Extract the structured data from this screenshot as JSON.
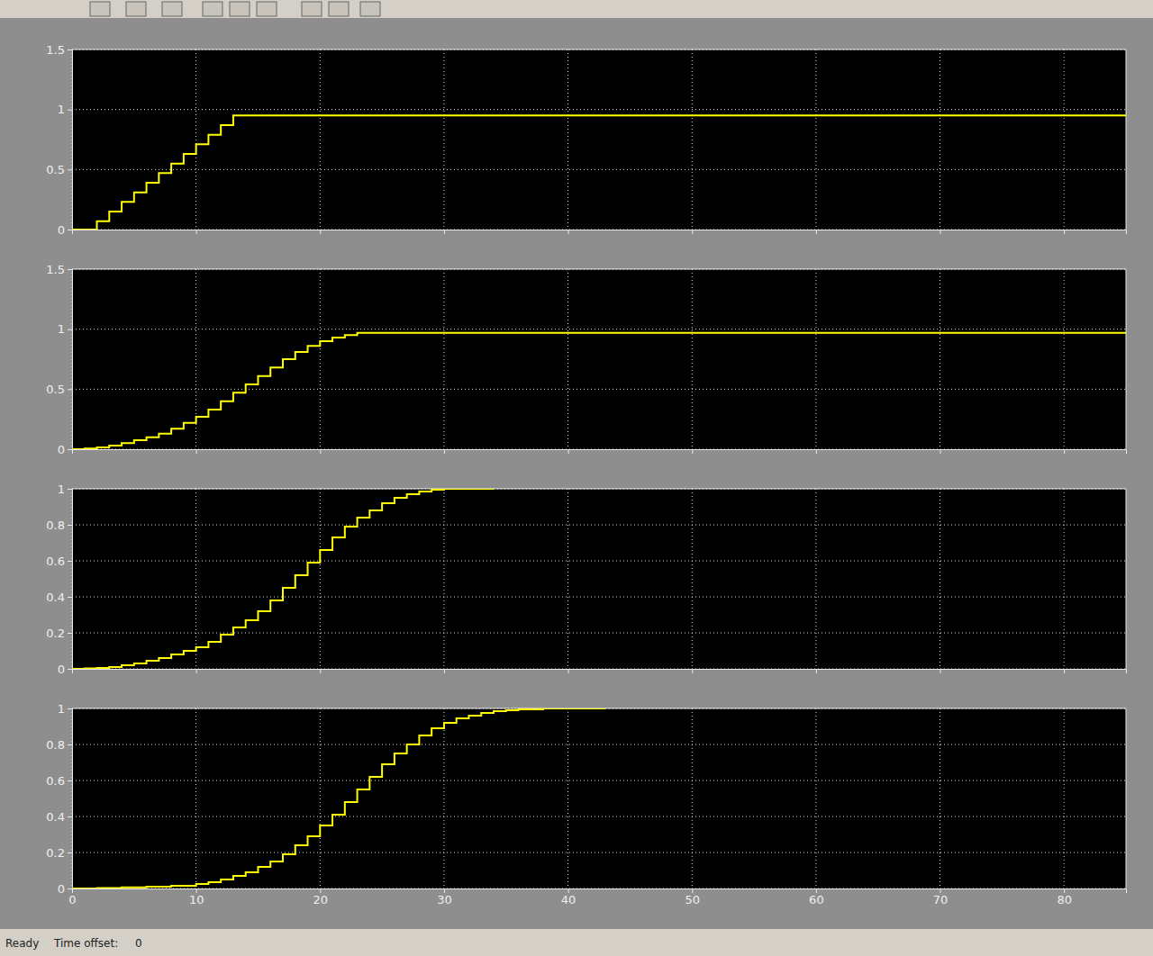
{
  "chart_data": [
    {
      "type": "line",
      "color": "#ffff00",
      "line_style": "step",
      "grid": true,
      "tick_labels": "y",
      "xlim": [
        0,
        85
      ],
      "xticks": [
        0,
        10,
        20,
        30,
        40,
        50,
        60,
        70,
        80
      ],
      "ylim": [
        0,
        1.5
      ],
      "yticks": [
        0,
        0.5,
        1,
        1.5
      ],
      "x": [
        0,
        1,
        2,
        3,
        4,
        5,
        6,
        7,
        8,
        9,
        10,
        11,
        12,
        13,
        85
      ],
      "values": [
        0,
        0,
        0.07,
        0.15,
        0.23,
        0.31,
        0.39,
        0.47,
        0.55,
        0.63,
        0.71,
        0.79,
        0.87,
        0.95,
        0.95
      ]
    },
    {
      "type": "line",
      "color": "#ffff00",
      "line_style": "step",
      "grid": true,
      "tick_labels": "y",
      "xlim": [
        0,
        85
      ],
      "xticks": [
        0,
        10,
        20,
        30,
        40,
        50,
        60,
        70,
        80
      ],
      "ylim": [
        0,
        1.5
      ],
      "yticks": [
        0,
        0.5,
        1,
        1.5
      ],
      "x": [
        0,
        1,
        2,
        3,
        4,
        5,
        6,
        7,
        8,
        9,
        10,
        11,
        12,
        13,
        14,
        15,
        16,
        17,
        18,
        19,
        20,
        21,
        22,
        23,
        85
      ],
      "values": [
        0,
        0.005,
        0.015,
        0.03,
        0.05,
        0.075,
        0.1,
        0.13,
        0.17,
        0.22,
        0.27,
        0.33,
        0.4,
        0.47,
        0.54,
        0.61,
        0.68,
        0.75,
        0.81,
        0.86,
        0.9,
        0.93,
        0.95,
        0.97,
        0.97
      ]
    },
    {
      "type": "line",
      "color": "#ffff00",
      "line_style": "step",
      "grid": true,
      "tick_labels": "y",
      "xlim": [
        0,
        85
      ],
      "xticks": [
        0,
        10,
        20,
        30,
        40,
        50,
        60,
        70,
        80
      ],
      "ylim": [
        0,
        1
      ],
      "yticks": [
        0,
        0.2,
        0.4,
        0.6,
        0.8,
        1
      ],
      "x": [
        0,
        1,
        2,
        3,
        4,
        5,
        6,
        7,
        8,
        9,
        10,
        11,
        12,
        13,
        14,
        15,
        16,
        17,
        18,
        19,
        20,
        21,
        22,
        23,
        24,
        25,
        26,
        27,
        28,
        29,
        30,
        34
      ],
      "values": [
        0,
        0.002,
        0.005,
        0.01,
        0.02,
        0.03,
        0.045,
        0.06,
        0.08,
        0.1,
        0.12,
        0.15,
        0.19,
        0.23,
        0.27,
        0.32,
        0.38,
        0.45,
        0.52,
        0.59,
        0.66,
        0.73,
        0.79,
        0.84,
        0.88,
        0.92,
        0.95,
        0.97,
        0.985,
        0.995,
        1,
        1
      ]
    },
    {
      "type": "line",
      "color": "#ffff00",
      "line_style": "step",
      "grid": true,
      "xlim": [
        0,
        85
      ],
      "xticks": [
        0,
        10,
        20,
        30,
        40,
        50,
        60,
        70,
        80
      ],
      "ylim": [
        0,
        1
      ],
      "yticks": [
        0,
        0.2,
        0.4,
        0.6,
        0.8,
        1
      ],
      "x": [
        0,
        2,
        4,
        6,
        8,
        10,
        11,
        12,
        13,
        14,
        15,
        16,
        17,
        18,
        19,
        20,
        21,
        22,
        23,
        24,
        25,
        26,
        27,
        28,
        29,
        30,
        31,
        32,
        33,
        34,
        35,
        36,
        38,
        43
      ],
      "values": [
        0,
        0.003,
        0.006,
        0.01,
        0.015,
        0.025,
        0.035,
        0.05,
        0.07,
        0.09,
        0.12,
        0.15,
        0.19,
        0.24,
        0.29,
        0.35,
        0.41,
        0.48,
        0.55,
        0.62,
        0.69,
        0.75,
        0.8,
        0.85,
        0.89,
        0.92,
        0.945,
        0.96,
        0.975,
        0.985,
        0.99,
        0.995,
        1,
        1
      ]
    }
  ],
  "status_bar": {
    "status": "Ready",
    "time_offset_label": "Time offset:",
    "time_offset": 0
  }
}
